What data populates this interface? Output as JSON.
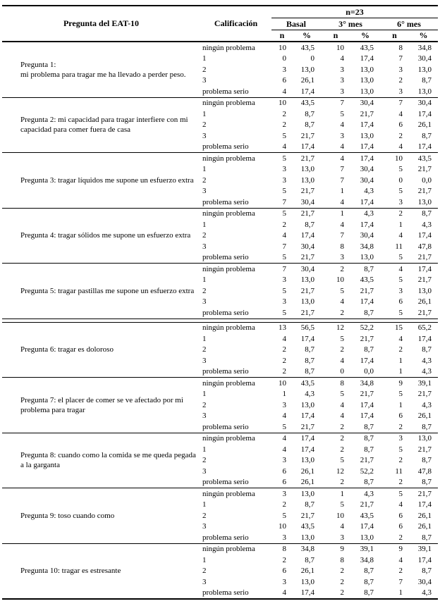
{
  "table": {
    "pregunta_header": "Pregunta del EAT-10",
    "calificacion_header": "Calificación",
    "n_total_header": "n=23",
    "col_groups": [
      "Basal",
      "3° mes",
      "6° mes"
    ],
    "sub_headers": [
      "n",
      "%"
    ],
    "questions": [
      {
        "label": "Pregunta 1:\nmi problema para tragar me ha llevado a perder peso.",
        "section_break_after": false,
        "rows": [
          {
            "calificacion": "ningún problema",
            "values": [
              "10",
              "43,5",
              "10",
              "43,5",
              "8",
              "34,8"
            ]
          },
          {
            "calificacion": "1",
            "values": [
              "0",
              "0",
              "4",
              "17,4",
              "7",
              "30,4"
            ]
          },
          {
            "calificacion": "2",
            "values": [
              "3",
              "13,0",
              "3",
              "13,0",
              "3",
              "13,0"
            ]
          },
          {
            "calificacion": "3",
            "values": [
              "6",
              "26,1",
              "3",
              "13,0",
              "2",
              "8,7"
            ]
          },
          {
            "calificacion": "problema serio",
            "values": [
              "4",
              "17,4",
              "3",
              "13,0",
              "3",
              "13,0"
            ]
          }
        ]
      },
      {
        "label": "Pregunta 2: mi capacidad para tragar interfiere con mi capacidad para comer fuera de casa",
        "section_break_after": false,
        "rows": [
          {
            "calificacion": "ningún problema",
            "values": [
              "10",
              "43,5",
              "7",
              "30,4",
              "7",
              "30,4"
            ]
          },
          {
            "calificacion": "1",
            "values": [
              "2",
              "8,7",
              "5",
              "21,7",
              "4",
              "17,4"
            ]
          },
          {
            "calificacion": "2",
            "values": [
              "2",
              "8,7",
              "4",
              "17,4",
              "6",
              "26,1"
            ]
          },
          {
            "calificacion": "3",
            "values": [
              "5",
              "21,7",
              "3",
              "13,0",
              "2",
              "8,7"
            ]
          },
          {
            "calificacion": "problema serio",
            "values": [
              "4",
              "17,4",
              "4",
              "17,4",
              "4",
              "17,4"
            ]
          }
        ]
      },
      {
        "label": "Pregunta 3: tragar líquidos me supone un esfuerzo extra",
        "section_break_after": false,
        "rows": [
          {
            "calificacion": "ningún problema",
            "values": [
              "5",
              "21,7",
              "4",
              "17,4",
              "10",
              "43,5"
            ]
          },
          {
            "calificacion": "1",
            "values": [
              "3",
              "13,0",
              "7",
              "30,4",
              "5",
              "21,7"
            ]
          },
          {
            "calificacion": "2",
            "values": [
              "3",
              "13,0",
              "7",
              "30,4",
              "0",
              "0,0"
            ]
          },
          {
            "calificacion": "3",
            "values": [
              "5",
              "21,7",
              "1",
              "4,3",
              "5",
              "21,7"
            ]
          },
          {
            "calificacion": "problema serio",
            "values": [
              "7",
              "30,4",
              "4",
              "17,4",
              "3",
              "13,0"
            ]
          }
        ]
      },
      {
        "label": "Pregunta 4: tragar sólidos me supone un esfuerzo extra",
        "section_break_after": false,
        "rows": [
          {
            "calificacion": "ningún problema",
            "values": [
              "5",
              "21,7",
              "1",
              "4,3",
              "2",
              "8,7"
            ]
          },
          {
            "calificacion": "1",
            "values": [
              "2",
              "8,7",
              "4",
              "17,4",
              "1",
              "4,3"
            ]
          },
          {
            "calificacion": "2",
            "values": [
              "4",
              "17,4",
              "7",
              "30,4",
              "4",
              "17,4"
            ]
          },
          {
            "calificacion": "3",
            "values": [
              "7",
              "30,4",
              "8",
              "34,8",
              "11",
              "47,8"
            ]
          },
          {
            "calificacion": "problema serio",
            "values": [
              "5",
              "21,7",
              "3",
              "13,0",
              "5",
              "21,7"
            ]
          }
        ]
      },
      {
        "label": "Pregunta 5: tragar pastillas me supone un esfuerzo extra",
        "section_break_after": true,
        "rows": [
          {
            "calificacion": "ningún problema",
            "values": [
              "7",
              "30,4",
              "2",
              "8,7",
              "4",
              "17,4"
            ]
          },
          {
            "calificacion": "1",
            "values": [
              "3",
              "13,0",
              "10",
              "43,5",
              "5",
              "21,7"
            ]
          },
          {
            "calificacion": "2",
            "values": [
              "5",
              "21,7",
              "5",
              "21,7",
              "3",
              "13,0"
            ]
          },
          {
            "calificacion": "3",
            "values": [
              "3",
              "13,0",
              "4",
              "17,4",
              "6",
              "26,1"
            ]
          },
          {
            "calificacion": "problema serio",
            "values": [
              "5",
              "21,7",
              "2",
              "8,7",
              "5",
              "21,7"
            ]
          }
        ]
      },
      {
        "label": "Pregunta 6: tragar es doloroso",
        "section_break_after": false,
        "rows": [
          {
            "calificacion": "ningún problema",
            "values": [
              "13",
              "56,5",
              "12",
              "52,2",
              "15",
              "65,2"
            ]
          },
          {
            "calificacion": "1",
            "values": [
              "4",
              "17,4",
              "5",
              "21,7",
              "4",
              "17,4"
            ]
          },
          {
            "calificacion": "2",
            "values": [
              "2",
              "8,7",
              "2",
              "8,7",
              "2",
              "8,7"
            ]
          },
          {
            "calificacion": "3",
            "values": [
              "2",
              "8,7",
              "4",
              "17,4",
              "1",
              "4,3"
            ]
          },
          {
            "calificacion": "problema serio",
            "values": [
              "2",
              "8,7",
              "0",
              "0,0",
              "1",
              "4,3"
            ]
          }
        ]
      },
      {
        "label": "Pregunta 7: el placer de comer se ve afectado por mi problema para tragar",
        "section_break_after": false,
        "rows": [
          {
            "calificacion": "ningún problema",
            "values": [
              "10",
              "43,5",
              "8",
              "34,8",
              "9",
              "39,1"
            ]
          },
          {
            "calificacion": "1",
            "values": [
              "1",
              "4,3",
              "5",
              "21,7",
              "5",
              "21,7"
            ]
          },
          {
            "calificacion": "2",
            "values": [
              "3",
              "13,0",
              "4",
              "17,4",
              "1",
              "4,3"
            ]
          },
          {
            "calificacion": "3",
            "values": [
              "4",
              "17,4",
              "4",
              "17,4",
              "6",
              "26,1"
            ]
          },
          {
            "calificacion": "problema serio",
            "values": [
              "5",
              "21,7",
              "2",
              "8,7",
              "2",
              "8,7"
            ]
          }
        ]
      },
      {
        "label": "Pregunta 8: cuando como la comida se me queda pegada a la garganta",
        "section_break_after": false,
        "rows": [
          {
            "calificacion": "ningún problema",
            "values": [
              "4",
              "17,4",
              "2",
              "8,7",
              "3",
              "13,0"
            ]
          },
          {
            "calificacion": "1",
            "values": [
              "4",
              "17,4",
              "2",
              "8,7",
              "5",
              "21,7"
            ]
          },
          {
            "calificacion": "2",
            "values": [
              "3",
              "13,0",
              "5",
              "21,7",
              "2",
              "8,7"
            ]
          },
          {
            "calificacion": "3",
            "values": [
              "6",
              "26,1",
              "12",
              "52,2",
              "11",
              "47,8"
            ]
          },
          {
            "calificacion": "problema serio",
            "values": [
              "6",
              "26,1",
              "2",
              "8,7",
              "2",
              "8,7"
            ]
          }
        ]
      },
      {
        "label": "Pregunta 9: toso cuando como",
        "section_break_after": false,
        "rows": [
          {
            "calificacion": "ningún problema",
            "values": [
              "3",
              "13,0",
              "1",
              "4,3",
              "5",
              "21,7"
            ]
          },
          {
            "calificacion": "1",
            "values": [
              "2",
              "8,7",
              "5",
              "21,7",
              "4",
              "17,4"
            ]
          },
          {
            "calificacion": "2",
            "values": [
              "5",
              "21,7",
              "10",
              "43,5",
              "6",
              "26,1"
            ]
          },
          {
            "calificacion": "3",
            "values": [
              "10",
              "43,5",
              "4",
              "17,4",
              "6",
              "26,1"
            ]
          },
          {
            "calificacion": "problema serio",
            "values": [
              "3",
              "13,0",
              "3",
              "13,0",
              "2",
              "8,7"
            ]
          }
        ]
      },
      {
        "label": "Pregunta 10: tragar es estresante",
        "section_break_after": false,
        "rows": [
          {
            "calificacion": "ningún problema",
            "values": [
              "8",
              "34,8",
              "9",
              "39,1",
              "9",
              "39,1"
            ]
          },
          {
            "calificacion": "1",
            "values": [
              "2",
              "8,7",
              "8",
              "34,8",
              "4",
              "17,4"
            ]
          },
          {
            "calificacion": "2",
            "values": [
              "6",
              "26,1",
              "2",
              "8,7",
              "2",
              "8,7"
            ]
          },
          {
            "calificacion": "3",
            "values": [
              "3",
              "13,0",
              "2",
              "8,7",
              "7",
              "30,4"
            ]
          },
          {
            "calificacion": "problema serio",
            "values": [
              "4",
              "17,4",
              "2",
              "8,7",
              "1",
              "4,3"
            ]
          }
        ]
      }
    ]
  }
}
